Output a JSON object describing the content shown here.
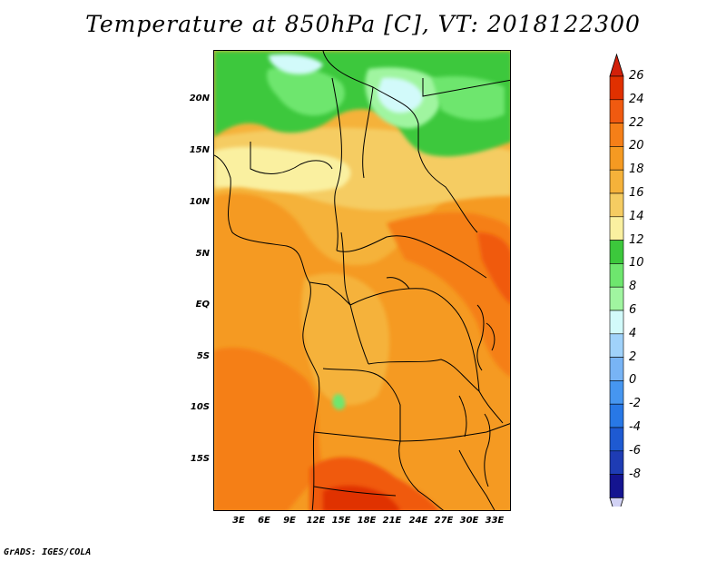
{
  "title": "Temperature at 850hPa [C], VT: 2018122300",
  "credit": "GrADS: IGES/COLA",
  "map": {
    "region": "Central and Southern Africa",
    "lat_labels": [
      "20N",
      "15N",
      "10N",
      "5N",
      "EQ",
      "5S",
      "10S",
      "15S"
    ],
    "lon_labels": [
      "3E",
      "6E",
      "9E",
      "12E",
      "15E",
      "18E",
      "21E",
      "24E",
      "27E",
      "30E",
      "33E"
    ]
  },
  "colorbar": {
    "labels": [
      "26",
      "24",
      "22",
      "20",
      "18",
      "16",
      "14",
      "12",
      "10",
      "8",
      "6",
      "4",
      "2",
      "0",
      "-2",
      "-4",
      "-6",
      "-8"
    ],
    "colors": [
      "#e03000",
      "#f05a10",
      "#f57f18",
      "#f59a22",
      "#f5b23a",
      "#f5cc62",
      "#faf0a0",
      "#3cc83c",
      "#6ee66e",
      "#a0f5a0",
      "#d2fafa",
      "#a0d2fa",
      "#78b4f5",
      "#4696f0",
      "#2878e6",
      "#1e5ad2",
      "#1e3cb4",
      "#141490"
    ],
    "low_cap_color": "#d2d2f5",
    "high_cap_color": "#d2200a"
  }
}
